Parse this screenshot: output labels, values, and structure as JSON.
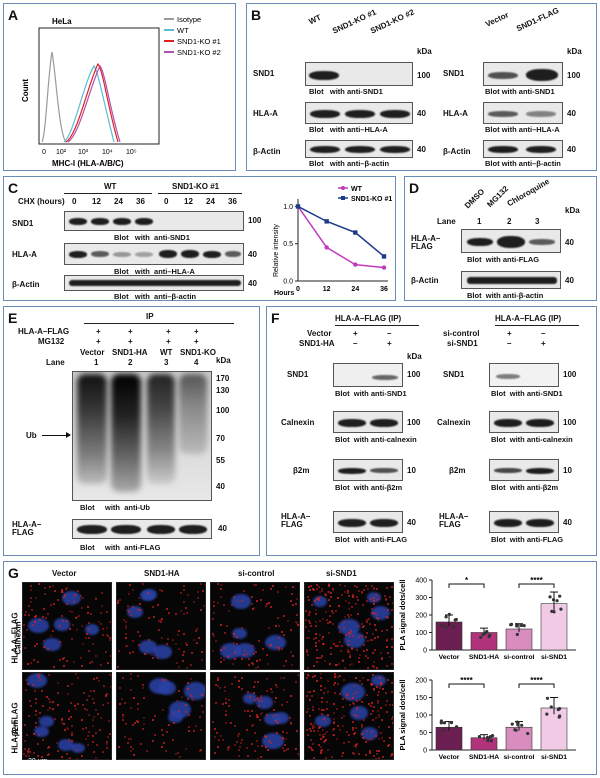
{
  "panelA": {
    "letter": "A",
    "cell_line": "HeLa",
    "legend": [
      "Isotype",
      "WT",
      "SND1-KO #1",
      "SND1-KO #2"
    ],
    "ylabel": "Count",
    "xlabel": "MHC-I (HLA-A/B/C)",
    "ticks": [
      "0",
      "10²",
      "10³",
      "10⁴",
      "10⁵"
    ],
    "colors": [
      "#9a9a9a",
      "#5bbcd6",
      "#e02020",
      "#b050b0"
    ]
  },
  "panelB": {
    "letter": "B",
    "left_lanes": [
      "WT",
      "SND1-KO #1",
      "SND1-KO #2"
    ],
    "right_lanes": [
      "Vector",
      "SND1-FLAG"
    ],
    "proteins": [
      "SND1",
      "HLA-A",
      "β-Actin"
    ],
    "mw": [
      "100",
      "40",
      "40"
    ],
    "kda": "kDa",
    "captions": [
      [
        "Blot",
        "with",
        "anti-SND1"
      ],
      [
        "Blot",
        "with",
        "anti–HLA-A"
      ],
      [
        "Blot",
        "with",
        "anti–β-actin"
      ]
    ]
  },
  "panelC": {
    "letter": "C",
    "cond_wt": "WT",
    "cond_ko": "SND1-KO #1",
    "chx": "CHX (hours)",
    "times": [
      "0",
      "12",
      "24",
      "36",
      "0",
      "12",
      "24",
      "36"
    ],
    "proteins": [
      "SND1",
      "HLA-A",
      "β-Actin"
    ],
    "mw": [
      "100",
      "40",
      "40"
    ],
    "captions": [
      [
        "Blot",
        "with",
        "anti-SND1"
      ],
      [
        "Blot",
        "with",
        "anti–HLA-A"
      ],
      [
        "Blot",
        "with",
        "anti–β-actin"
      ]
    ]
  },
  "chart_data": {
    "type": "line",
    "x": [
      0,
      12,
      24,
      36
    ],
    "xlabel": "Hours",
    "ylabel": "Relative intensity",
    "xticks": [
      "0",
      "12",
      "24",
      "36"
    ],
    "yticks": [
      "0.0",
      "0.5",
      "1.0"
    ],
    "ylim": [
      0,
      1.1
    ],
    "series": [
      {
        "name": "WT",
        "values": [
          1.0,
          0.45,
          0.22,
          0.18
        ],
        "color": "#c03ac0"
      },
      {
        "name": "SND1-KO #1",
        "values": [
          1.0,
          0.8,
          0.65,
          0.33
        ],
        "color": "#1c3a8a"
      }
    ]
  },
  "panelD": {
    "letter": "D",
    "lane_label": "Lane",
    "lanes": [
      "DMSO",
      "MG132",
      "Chloroquine"
    ],
    "lane_nums": [
      "1",
      "2",
      "3"
    ],
    "kda": "kDa",
    "protein1": "HLA-A–FLAG",
    "protein2": "β-Actin",
    "mw": [
      "40",
      "40"
    ],
    "captions": [
      [
        "Blot",
        "with",
        "anti-FLAG"
      ],
      [
        "Blot",
        "with",
        "anti-β-actin"
      ]
    ]
  },
  "panelE": {
    "letter": "E",
    "ip": "IP",
    "row1": "HLA-A–FLAG",
    "row2": "MG132",
    "plus": "+",
    "lane_label": "Lane",
    "lanes": [
      "Vector",
      "SND1-HA",
      "WT",
      "SND1-KO"
    ],
    "lane_nums": [
      "1",
      "2",
      "3",
      "4"
    ],
    "kda": "kDa",
    "mw": [
      "170",
      "130",
      "100",
      "70",
      "55",
      "40"
    ],
    "ub": "Ub",
    "protein2": "HLA-A– FLAG",
    "mw2": "40",
    "captions": [
      [
        "Blot",
        "with",
        "anti-Ub"
      ],
      [
        "Blot",
        "with",
        "anti-FLAG"
      ]
    ]
  },
  "panelF": {
    "letter": "F",
    "left_title": "HLA-A–FLAG (IP)",
    "right_title": "HLA-A–FLAG (IP)",
    "left_rows": [
      "Vector",
      "SND1-HA"
    ],
    "right_rows": [
      "si-control",
      "si-SND1"
    ],
    "left_signs": [
      [
        "+",
        "–"
      ],
      [
        "–",
        "+"
      ]
    ],
    "right_signs": [
      [
        "+",
        "–"
      ],
      [
        "–",
        "+"
      ]
    ],
    "kda": "kDa",
    "proteins": [
      "SND1",
      "Calnexin",
      "β2m",
      "HLA-A– FLAG"
    ],
    "mw": [
      "100",
      "100",
      "10",
      "40"
    ],
    "captions": [
      [
        "Blot",
        "with",
        "anti-SND1"
      ],
      [
        "Blot",
        "with",
        "anti-calnexin"
      ],
      [
        "Blot",
        "with",
        "anti-β2m"
      ],
      [
        "Blot",
        "with",
        "anti-FLAG"
      ]
    ]
  },
  "panelG": {
    "letter": "G",
    "cols": [
      "Vector",
      "SND1-HA",
      "si-control",
      "si-SND1"
    ],
    "row_labels": [
      [
        "HLA-A–FLAG",
        "Calnexin"
      ],
      [
        "HLA-A–FLAG",
        "β2m"
      ]
    ],
    "scale": "20 μm",
    "ylabel": "PLA signal dots/cell",
    "bar_cats": [
      "Vector",
      "SND1-HA",
      "si-control",
      "si-SND1"
    ],
    "bars_top": {
      "values": [
        160,
        100,
        120,
        265
      ],
      "yticks": [
        "0",
        "100",
        "200",
        "300",
        "400"
      ],
      "ymax": 400,
      "sig": [
        "*",
        "****"
      ]
    },
    "bars_bottom": {
      "values": [
        65,
        35,
        65,
        120
      ],
      "yticks": [
        "0",
        "50",
        "100",
        "150",
        "200"
      ],
      "ymax": 200,
      "sig": [
        "****",
        "****"
      ]
    },
    "bar_colors": [
      "#6b1e52",
      "#b0337b",
      "#d98dbf",
      "#f1cbe6"
    ]
  }
}
